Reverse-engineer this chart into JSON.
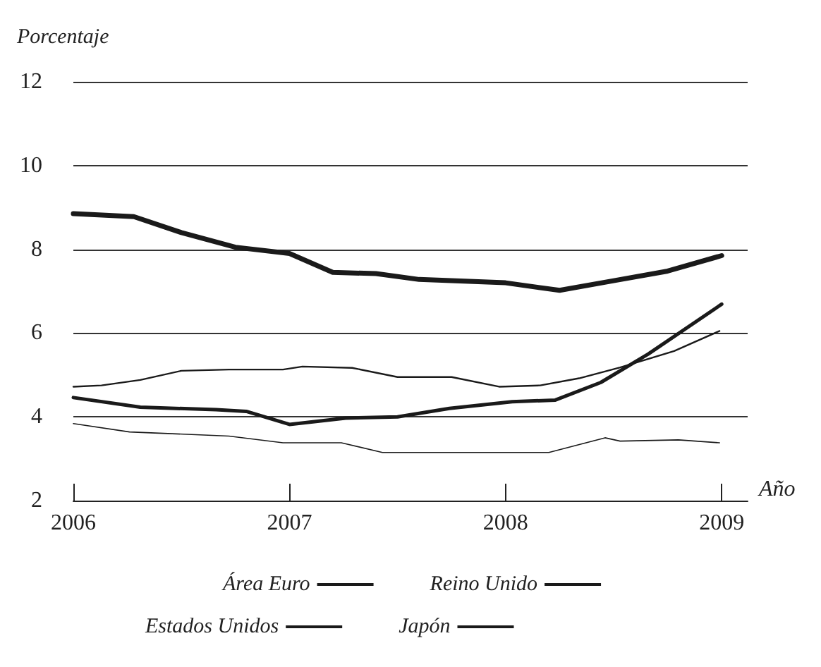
{
  "chart_data": {
    "type": "line",
    "ylabel": "Porcentaje",
    "xlabel": "Año",
    "xlim": [
      2006,
      2009.12
    ],
    "xticks": [
      2006,
      2007,
      2008,
      2009
    ],
    "ylim": [
      2,
      12
    ],
    "yticks": [
      2,
      4,
      6,
      8,
      10,
      12
    ],
    "grid": "y",
    "legend": "bottom",
    "marker": "none",
    "line_style": "solid",
    "series": [
      {
        "name": "Área Euro",
        "color": "#1a1a1a",
        "x": [
          2006,
          2006.28,
          2006.5,
          2006.75,
          2007.0,
          2007.2,
          2007.4,
          2007.6,
          2008.0,
          2008.25,
          2008.5,
          2008.75,
          2009
        ],
        "values": [
          8.85,
          8.78,
          8.4,
          8.05,
          7.9,
          7.45,
          7.42,
          7.28,
          7.2,
          7.02,
          7.25,
          7.48,
          7.85
        ]
      },
      {
        "name": "Reino Unido",
        "color": "#1a1a1a",
        "x": [
          2006,
          2006.13,
          2006.31,
          2006.5,
          2006.72,
          2006.97,
          2007.06,
          2007.29,
          2007.5,
          2007.75,
          2007.97,
          2008.16,
          2008.34,
          2008.53,
          2008.78,
          2008.99
        ],
        "values": [
          4.72,
          4.75,
          4.88,
          5.1,
          5.13,
          5.13,
          5.2,
          5.17,
          4.95,
          4.95,
          4.72,
          4.75,
          4.92,
          5.18,
          5.57,
          6.05
        ]
      },
      {
        "name": "Estados Unidos",
        "color": "#1a1a1a",
        "x": [
          2006,
          2006.31,
          2006.66,
          2006.8,
          2007.0,
          2007.26,
          2007.5,
          2007.74,
          2008.03,
          2008.23,
          2008.44,
          2008.66,
          2009.0
        ],
        "values": [
          4.46,
          4.23,
          4.17,
          4.13,
          3.82,
          3.97,
          4.0,
          4.2,
          4.36,
          4.4,
          4.82,
          5.5,
          6.69
        ]
      },
      {
        "name": "Japón",
        "color": "#1a1a1a",
        "x": [
          2006,
          2006.26,
          2006.72,
          2006.97,
          2007.24,
          2007.43,
          2008.2,
          2008.46,
          2008.53,
          2008.8,
          2008.99
        ],
        "values": [
          3.84,
          3.64,
          3.54,
          3.38,
          3.38,
          3.15,
          3.15,
          3.5,
          3.42,
          3.45,
          3.38
        ]
      }
    ]
  }
}
